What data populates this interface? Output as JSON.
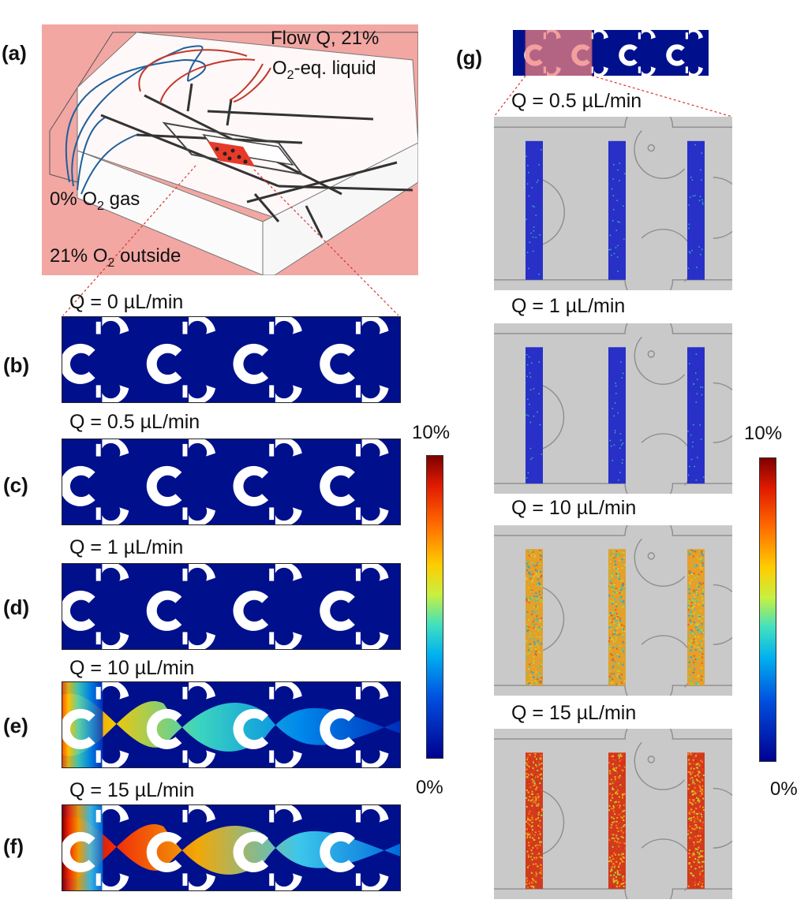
{
  "panel_a": {
    "label": "(a)",
    "flow_line1": "Flow Q, 21%",
    "flow_line2_prefix": "O",
    "flow_line2_sub": "2",
    "flow_line2_suffix": "-eq. liquid",
    "gas_prefix": "0% O",
    "gas_sub": "2",
    "gas_suffix": " gas",
    "outside_prefix": "21% O",
    "outside_sub": "2",
    "outside_suffix": " outside",
    "background_color": "#f2a7a3",
    "gas_arrow_color": "#1f5f9a",
    "liquid_arrow_color": "#c0392b"
  },
  "simulations": [
    {
      "label": "(b)",
      "q": "Q = 0 µL/min",
      "flow_level": 0
    },
    {
      "label": "(c)",
      "q": "Q = 0.5 µL/min",
      "flow_level": 0
    },
    {
      "label": "(d)",
      "q": "Q = 1 µL/min",
      "flow_level": 0
    },
    {
      "label": "(e)",
      "q": "Q = 10 µL/min",
      "flow_level": 0.6
    },
    {
      "label": "(f)",
      "q": "Q = 15 µL/min",
      "flow_level": 1.0
    }
  ],
  "colorbar_sim": {
    "max": "10%",
    "min": "0%"
  },
  "panel_g": {
    "label": "(g)",
    "experiments": [
      {
        "q": "Q = 0.5 µL/min",
        "level": 0
      },
      {
        "q": "Q = 1 µL/min",
        "level": 0
      },
      {
        "q": "Q = 10 µL/min",
        "level": 0.6
      },
      {
        "q": "Q = 15 µL/min",
        "level": 1.0
      }
    ]
  },
  "colorbar_exp": {
    "max": "10%",
    "min": "0%"
  },
  "colors": {
    "low": "#00108c",
    "channel_bg": "#c9c9c9",
    "zoom_line": "#d9342b"
  }
}
